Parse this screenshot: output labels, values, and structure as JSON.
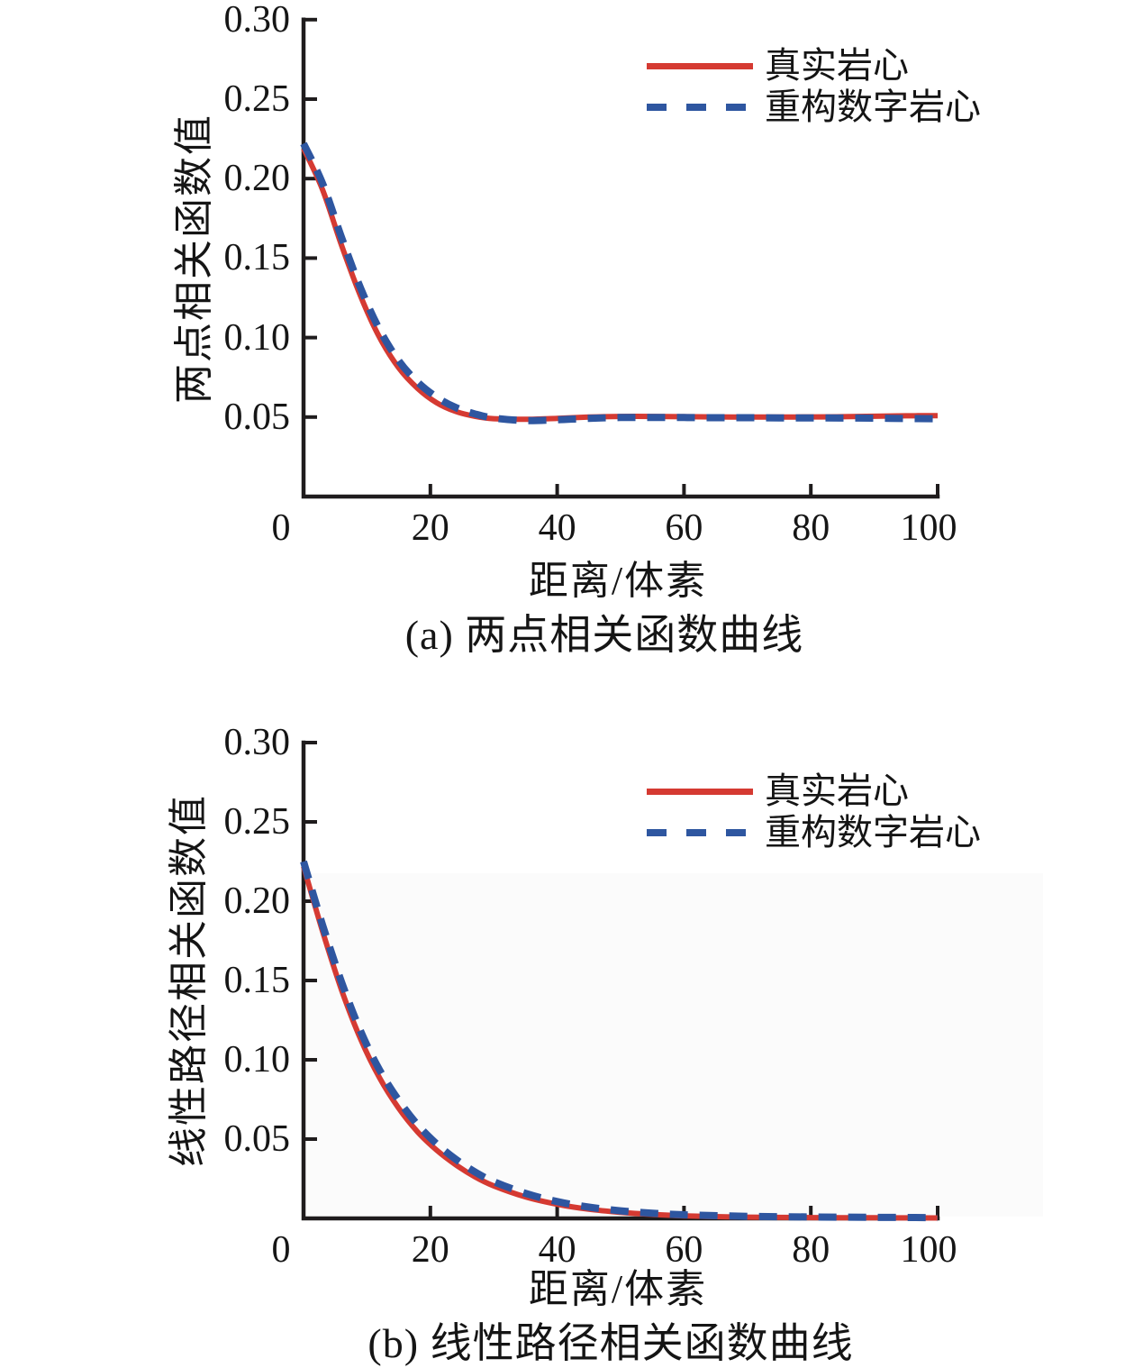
{
  "figure": {
    "background": "#ffffff",
    "text_color": "#151515",
    "axis_color": "#1f1c1d"
  },
  "chart_data": [
    {
      "id": "a",
      "type": "line",
      "title": "(a) 两点相关函数曲线",
      "xlabel": "距离/体素",
      "ylabel": "两点相关函数值",
      "xlim": [
        0,
        100
      ],
      "ylim": [
        0,
        0.3
      ],
      "grid": false,
      "legend_position": "upper right inside",
      "xticks": {
        "values": [
          0,
          20,
          40,
          60,
          80,
          100
        ],
        "labels": [
          "0",
          "20",
          "40",
          "60",
          "80",
          "100"
        ]
      },
      "yticks": {
        "values": [
          0.3,
          0.25,
          0.2,
          0.15,
          0.1,
          0.05
        ],
        "labels": [
          "0.30",
          "0.25",
          "0.20",
          "0.15",
          "0.10",
          "0.05"
        ]
      },
      "legend": [
        {
          "label": "真实岩心",
          "color": "#d53a32",
          "style": "solid"
        },
        {
          "label": "重构数字岩心",
          "color": "#2e56a0",
          "style": "dashed"
        }
      ],
      "series": [
        {
          "name": "真实岩心",
          "color": "#d53a32",
          "style": "solid",
          "points": [
            [
              0,
              0.219
            ],
            [
              3,
              0.193
            ],
            [
              6,
              0.158
            ],
            [
              9,
              0.126
            ],
            [
              12,
              0.1
            ],
            [
              15,
              0.081
            ],
            [
              18,
              0.068
            ],
            [
              21,
              0.059
            ],
            [
              24,
              0.0535
            ],
            [
              27,
              0.0505
            ],
            [
              30,
              0.049
            ],
            [
              35,
              0.0486
            ],
            [
              40,
              0.0492
            ],
            [
              45,
              0.05
            ],
            [
              50,
              0.0504
            ],
            [
              55,
              0.0504
            ],
            [
              60,
              0.0502
            ],
            [
              65,
              0.0501
            ],
            [
              70,
              0.05
            ],
            [
              75,
              0.05
            ],
            [
              80,
              0.0501
            ],
            [
              85,
              0.0502
            ],
            [
              90,
              0.0505
            ],
            [
              95,
              0.0508
            ],
            [
              100,
              0.0509
            ]
          ]
        },
        {
          "name": "重构数字岩心",
          "color": "#2e56a0",
          "style": "dashed",
          "points": [
            [
              0,
              0.222
            ],
            [
              3,
              0.197
            ],
            [
              6,
              0.163
            ],
            [
              9,
              0.131
            ],
            [
              12,
              0.105
            ],
            [
              15,
              0.0855
            ],
            [
              18,
              0.072
            ],
            [
              21,
              0.0625
            ],
            [
              24,
              0.056
            ],
            [
              27,
              0.052
            ],
            [
              30,
              0.0494
            ],
            [
              35,
              0.0478
            ],
            [
              40,
              0.0483
            ],
            [
              45,
              0.0492
            ],
            [
              50,
              0.0497
            ],
            [
              55,
              0.0498
            ],
            [
              60,
              0.0497
            ],
            [
              65,
              0.0496
            ],
            [
              70,
              0.0496
            ],
            [
              75,
              0.0495
            ],
            [
              80,
              0.0495
            ],
            [
              85,
              0.0494
            ],
            [
              90,
              0.0493
            ],
            [
              95,
              0.0491
            ],
            [
              100,
              0.0489
            ]
          ]
        }
      ]
    },
    {
      "id": "b",
      "type": "line",
      "title": "(b) 线性路径相关函数曲线",
      "xlabel": "距离/体素",
      "ylabel": "线性路径相关函数值",
      "xlim": [
        0,
        100
      ],
      "ylim": [
        0,
        0.3
      ],
      "grid": false,
      "legend_position": "upper right inside",
      "xticks": {
        "values": [
          0,
          20,
          40,
          60,
          80,
          100
        ],
        "labels": [
          "0",
          "20",
          "40",
          "60",
          "80",
          "100"
        ]
      },
      "yticks": {
        "values": [
          0.3,
          0.25,
          0.2,
          0.15,
          0.1,
          0.05
        ],
        "labels": [
          "0.30",
          "0.25",
          "0.20",
          "0.15",
          "0.10",
          "0.05"
        ]
      },
      "legend": [
        {
          "label": "真实岩心",
          "color": "#d53a32",
          "style": "solid"
        },
        {
          "label": "重构数字岩心",
          "color": "#2e56a0",
          "style": "dashed"
        }
      ],
      "series": [
        {
          "name": "真实岩心",
          "color": "#d53a32",
          "style": "solid",
          "points": [
            [
              0,
              0.222
            ],
            [
              3,
              0.181
            ],
            [
              6,
              0.144
            ],
            [
              9,
              0.113
            ],
            [
              12,
              0.0885
            ],
            [
              15,
              0.0695
            ],
            [
              18,
              0.0545
            ],
            [
              21,
              0.043
            ],
            [
              24,
              0.0338
            ],
            [
              27,
              0.0263
            ],
            [
              30,
              0.0205
            ],
            [
              35,
              0.0136
            ],
            [
              40,
              0.0089
            ],
            [
              45,
              0.0058
            ],
            [
              50,
              0.0038
            ],
            [
              55,
              0.0025
            ],
            [
              60,
              0.0016
            ],
            [
              70,
              0.0008
            ],
            [
              80,
              0.0005
            ],
            [
              90,
              0.0004
            ],
            [
              100,
              0.0003
            ]
          ]
        },
        {
          "name": "重构数字岩心",
          "color": "#2e56a0",
          "style": "dashed",
          "points": [
            [
              0,
              0.225
            ],
            [
              3,
              0.185
            ],
            [
              6,
              0.149
            ],
            [
              9,
              0.118
            ],
            [
              12,
              0.0935
            ],
            [
              15,
              0.0745
            ],
            [
              18,
              0.059
            ],
            [
              21,
              0.047
            ],
            [
              24,
              0.0373
            ],
            [
              27,
              0.0294
            ],
            [
              30,
              0.0232
            ],
            [
              35,
              0.0158
            ],
            [
              40,
              0.0106
            ],
            [
              45,
              0.0071
            ],
            [
              50,
              0.0048
            ],
            [
              55,
              0.0033
            ],
            [
              60,
              0.0023
            ],
            [
              70,
              0.0013
            ],
            [
              80,
              0.0009
            ],
            [
              90,
              0.0007
            ],
            [
              100,
              0.0005
            ]
          ]
        }
      ]
    }
  ]
}
